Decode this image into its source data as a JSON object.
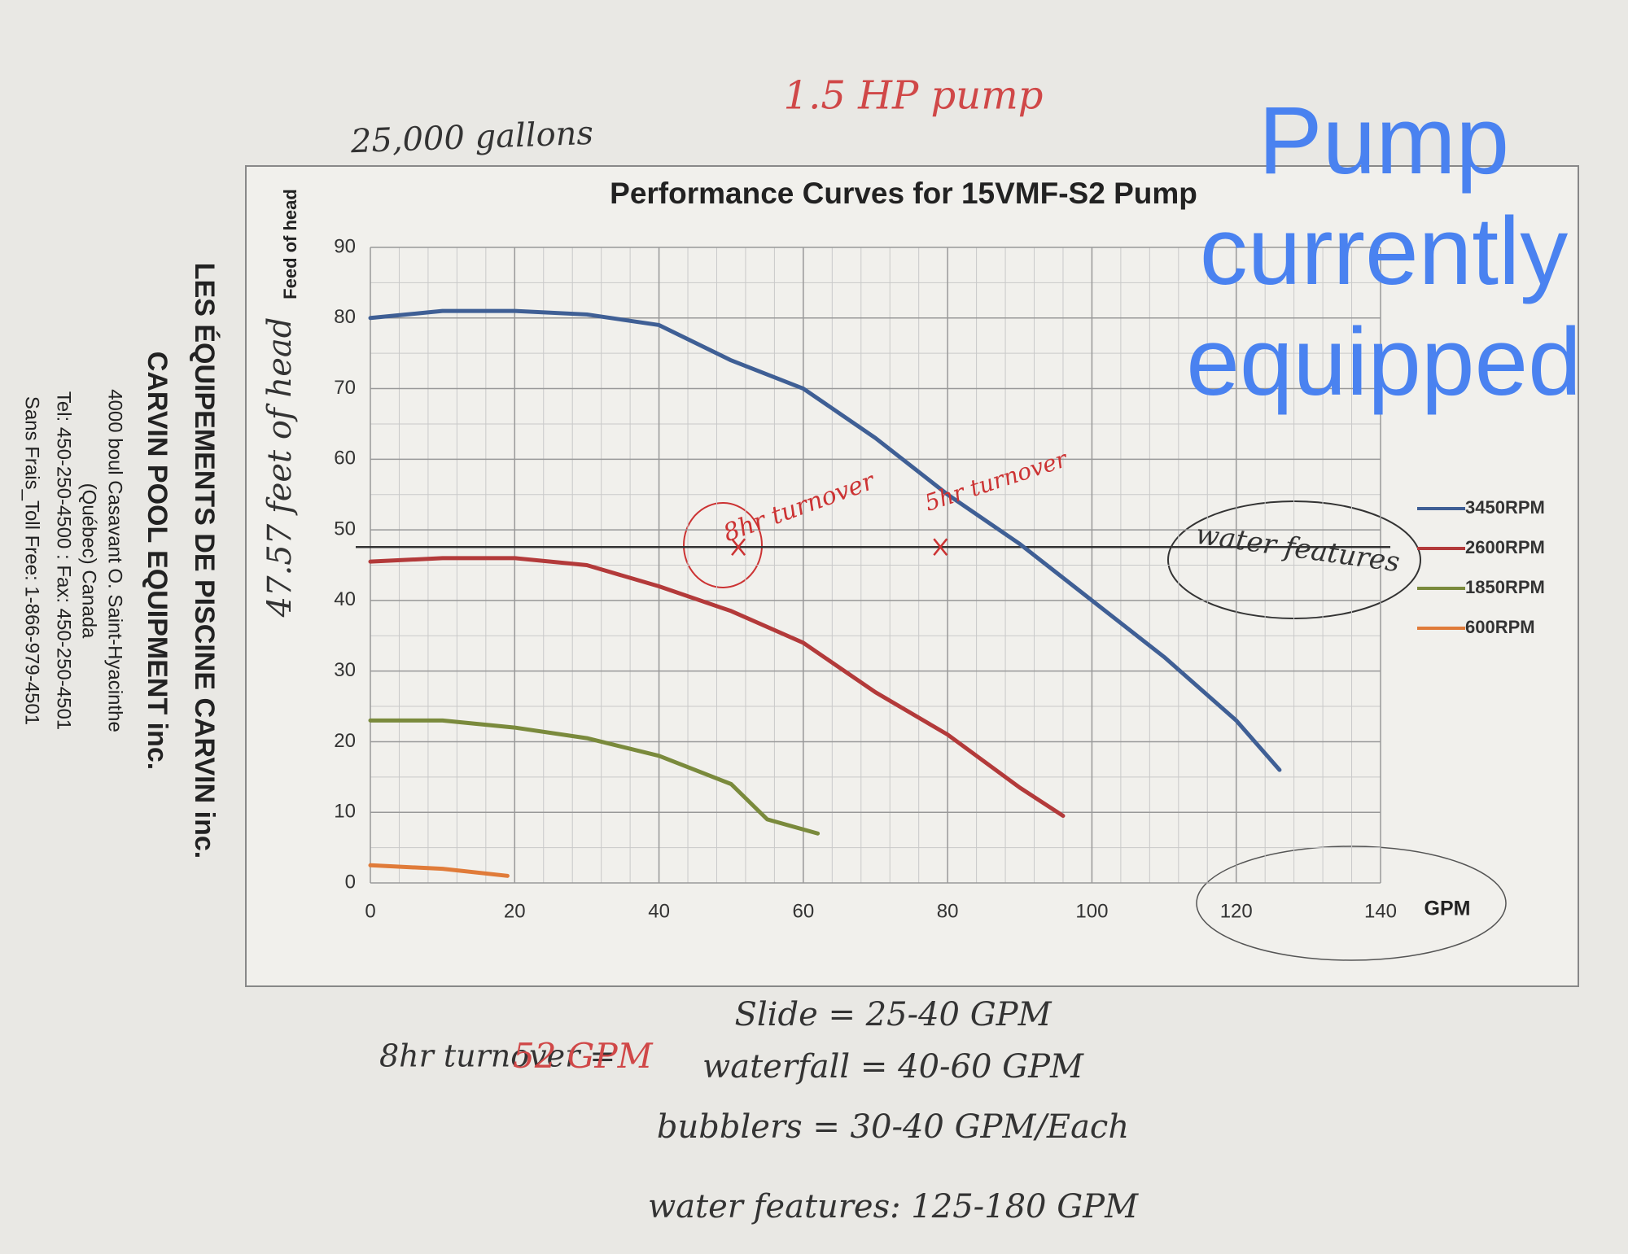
{
  "chart_data": {
    "type": "line",
    "title": "Performance Curves for 15VMF-S2 Pump",
    "xlabel": "GPM",
    "ylabel": "Feed of head",
    "xlim": [
      0,
      140
    ],
    "ylim": [
      0,
      90
    ],
    "xticks": [
      0,
      20,
      40,
      60,
      80,
      100,
      120,
      140
    ],
    "yticks": [
      0,
      10,
      20,
      30,
      40,
      50,
      60,
      70,
      80,
      90
    ],
    "grid": true,
    "legend": "right",
    "series": [
      {
        "name": "3450RPM",
        "color": "#3f5f95",
        "x": [
          0,
          10,
          20,
          30,
          40,
          50,
          60,
          70,
          80,
          90,
          100,
          110,
          120,
          126
        ],
        "values": [
          80,
          81,
          81,
          80.5,
          79,
          74,
          70,
          63,
          55,
          48,
          40,
          32,
          23,
          16
        ]
      },
      {
        "name": "2600RPM",
        "color": "#b33a3a",
        "x": [
          0,
          10,
          20,
          30,
          40,
          50,
          60,
          70,
          80,
          90,
          96
        ],
        "values": [
          45.5,
          46,
          46,
          45,
          42,
          38.5,
          34,
          27,
          21,
          13.5,
          9.5
        ]
      },
      {
        "name": "1850RPM",
        "color": "#7a8a3c",
        "x": [
          0,
          10,
          20,
          30,
          40,
          50,
          55,
          62
        ],
        "values": [
          23,
          23,
          22,
          20.5,
          18,
          14,
          9,
          7
        ]
      },
      {
        "name": "600RPM",
        "color": "#e07b39",
        "x": [
          0,
          10,
          19
        ],
        "values": [
          2.5,
          2,
          1
        ]
      }
    ],
    "reference_line": 47.57,
    "markers": {
      "x": [
        51,
        79
      ],
      "y": [
        47.57,
        47.57
      ]
    },
    "annotations": [
      "1.5 HP pump",
      "25,000 gallons",
      "Pump currently equipped",
      "47.57 feet of head",
      "8hr turnover",
      "5hr turnover",
      "water features",
      "8hr turnover =",
      "52 GPM",
      "Slide = 25-40 GPM",
      "waterfall = 40-60 GPM",
      "bubblers = 30-40 GPM/Each",
      "water features: 125-180 GPM"
    ]
  },
  "company": [
    "LES ÉQUIPEMENTS DE PISCINE CARVIN inc.",
    "CARVIN POOL EQUIPMENT inc.",
    "4000 boul Casavant O. Saint-Hyacinthe",
    "(Québec) Canada",
    "Tel: 450-250-4500 : Fax: 450-250-4501",
    "Sans Frais_Toll Free: 1-866-979-4501"
  ]
}
